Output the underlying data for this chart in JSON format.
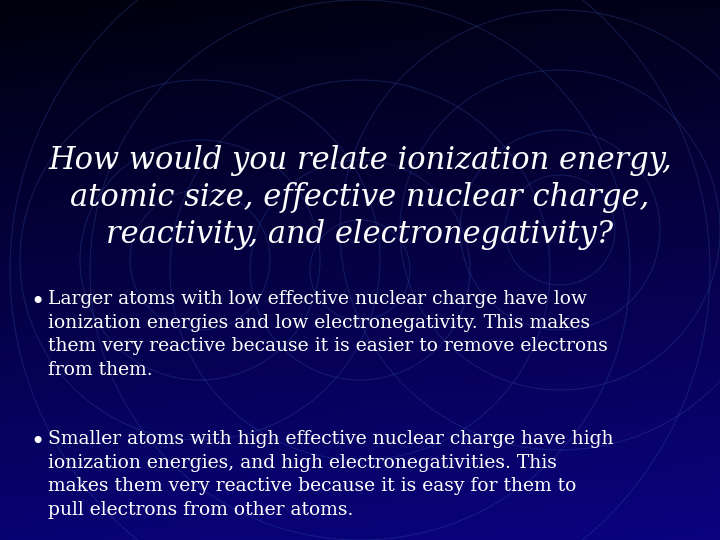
{
  "title": "How would you relate ionization energy,\natomic size, effective nuclear charge,\nreactivity, and electronegativity?",
  "title_fontsize": 22,
  "title_color": "#ffffff",
  "bullet1": "Larger atoms with low effective nuclear charge have low\nionization energies and low electronegativity. This makes\nthem very reactive because it is easier to remove electrons\nfrom them.",
  "bullet2": "Smaller atoms with high effective nuclear charge have high\nionization energies, and high electronegativities. This\nmakes them very reactive because it is easy for them to\npull electrons from other atoms.",
  "bullet_fontsize": 13.5,
  "bullet_color": "#ffffff",
  "bg_dark": "#000010",
  "bg_mid": "#00006A",
  "circle_color": "#3355AA",
  "circle_alpha": 0.3
}
